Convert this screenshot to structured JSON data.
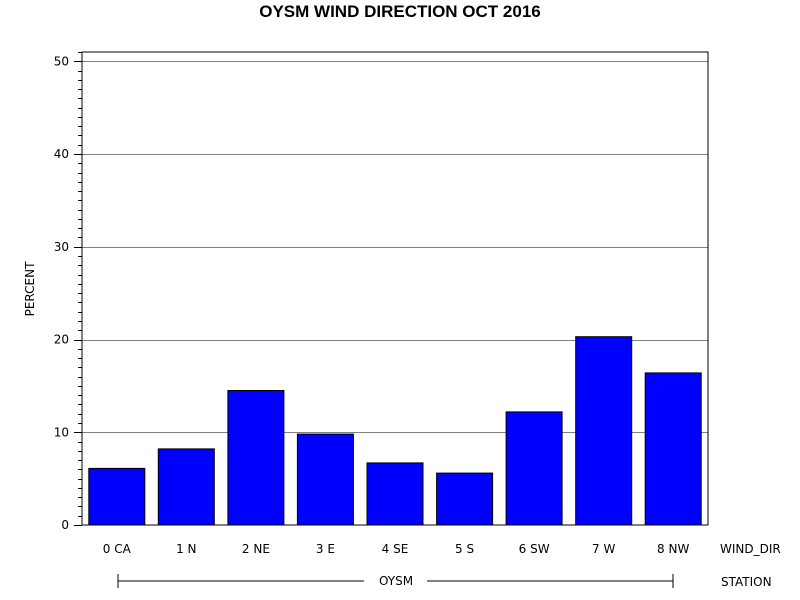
{
  "chart_data": {
    "type": "bar",
    "title": "OYSM WIND DIRECTION OCT 2016",
    "ylabel": "PERCENT",
    "xlabel": "WIND_DIR",
    "group_axis_label": "STATION",
    "group_label": "OYSM",
    "categories": [
      "0 CA",
      "1 N",
      "2 NE",
      "3 E",
      "4 SE",
      "5 S",
      "6 SW",
      "7 W",
      "8 NW"
    ],
    "values": [
      6.1,
      8.2,
      14.5,
      9.8,
      6.7,
      5.6,
      12.2,
      20.3,
      16.4
    ],
    "ylim": [
      0,
      51
    ],
    "yticks": [
      0,
      10,
      20,
      30,
      40,
      50
    ],
    "grid": true,
    "bar_color": "#0000ff",
    "bar_edge_color": "#000000"
  }
}
